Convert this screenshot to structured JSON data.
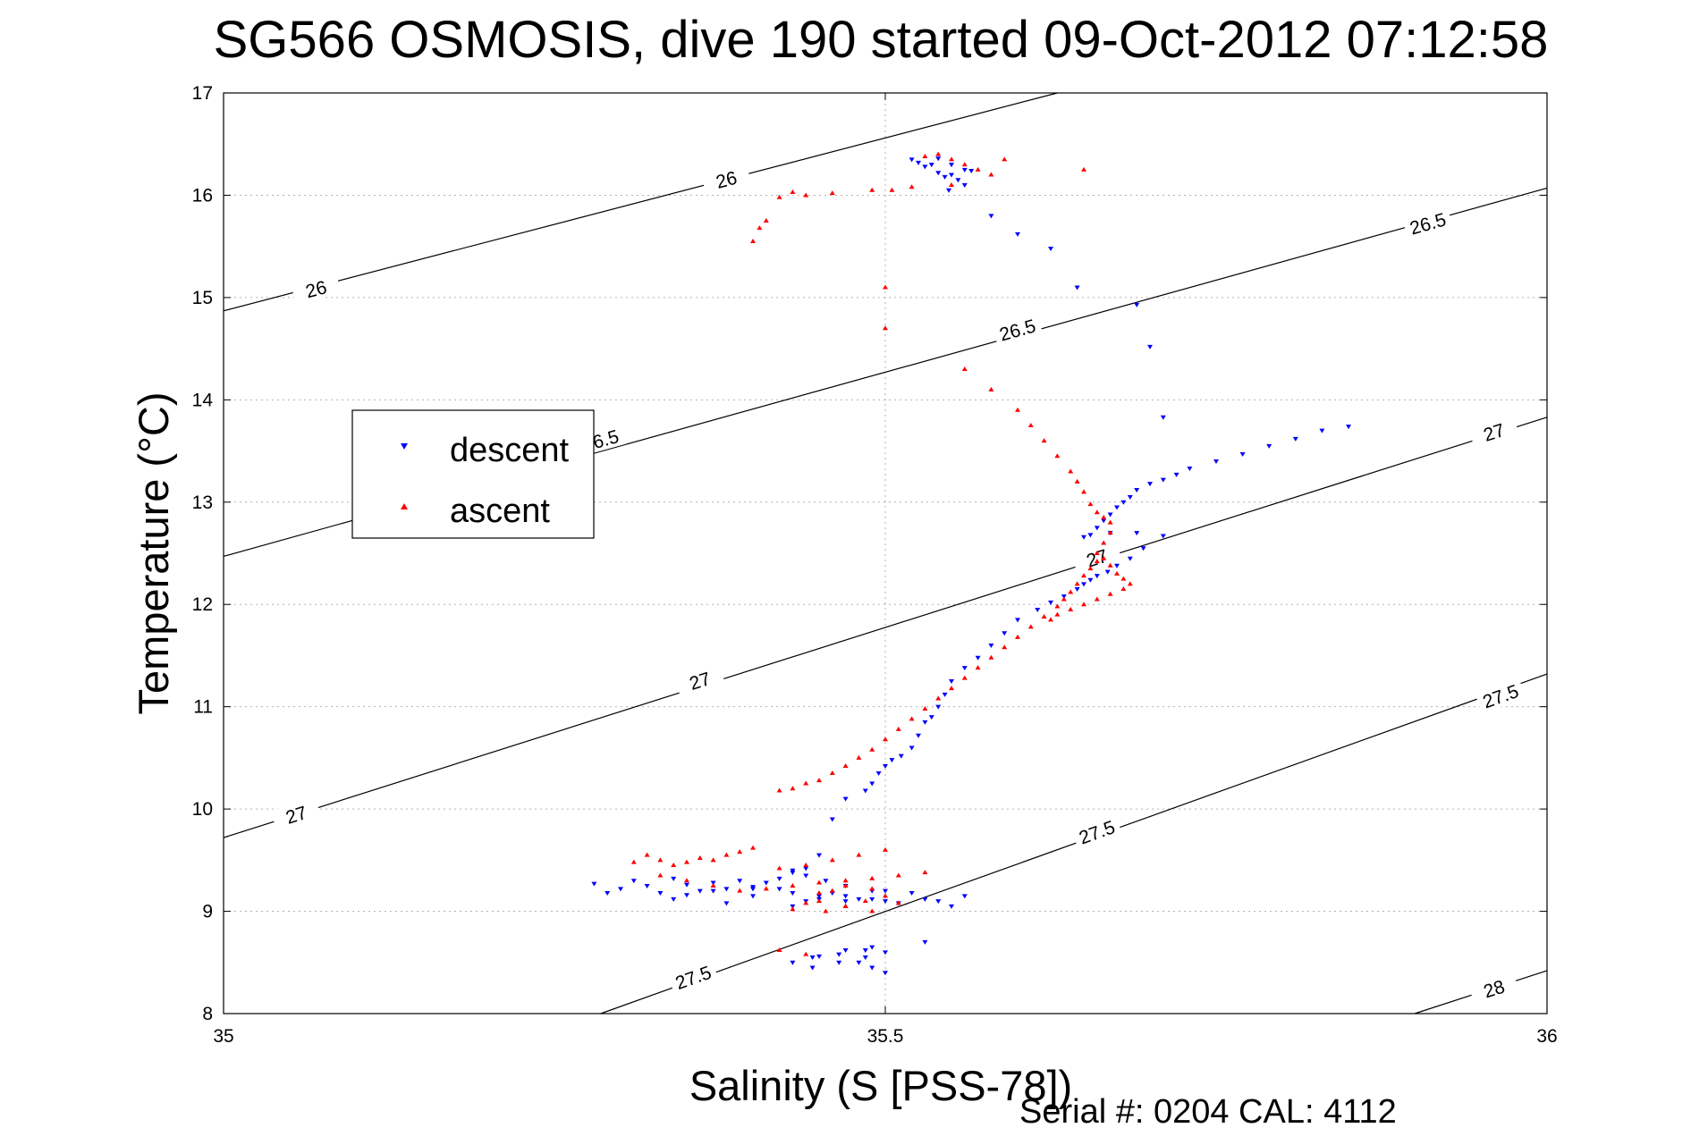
{
  "chart_data": {
    "type": "scatter",
    "title": "SG566 OSMOSIS, dive 190 started 09-Oct-2012 07:12:58",
    "xlabel": "Salinity (S [PSS-78])",
    "ylabel": "Temperature (°C)",
    "footer": "Serial #: 0204  CAL: 4112",
    "xlim": [
      35,
      36
    ],
    "ylim": [
      8,
      17
    ],
    "xticks": [
      35,
      35.5,
      36
    ],
    "xtick_labels": [
      "35",
      "35.5",
      "36"
    ],
    "yticks": [
      8,
      9,
      10,
      11,
      12,
      13,
      14,
      15,
      16,
      17
    ],
    "ytick_labels": [
      "8",
      "9",
      "10",
      "11",
      "12",
      "13",
      "14",
      "15",
      "16",
      "17"
    ],
    "grid": true,
    "legend_position": "upper-left",
    "density_contours": [
      {
        "label": "26",
        "segment": [
          [
            35,
            14.87
          ],
          [
            35.63,
            17
          ]
        ],
        "label_points": [
          [
            35.07,
            15.08
          ],
          [
            35.38,
            16.15
          ]
        ]
      },
      {
        "label": "26.5",
        "segment": [
          [
            35,
            12.47
          ],
          [
            36,
            16.07
          ]
        ],
        "label_points": [
          [
            35.285,
            13.6
          ],
          [
            35.6,
            14.68
          ],
          [
            35.91,
            15.72
          ]
        ]
      },
      {
        "label": "27",
        "segment": [
          [
            35,
            9.72
          ],
          [
            36,
            13.83
          ]
        ],
        "label_points": [
          [
            35.055,
            9.94
          ],
          [
            35.36,
            11.25
          ],
          [
            35.66,
            12.45
          ],
          [
            35.96,
            13.68
          ]
        ]
      },
      {
        "label": "27.5",
        "segment": [
          [
            35.285,
            8
          ],
          [
            36,
            11.32
          ]
        ],
        "label_points": [
          [
            35.355,
            8.35
          ],
          [
            35.66,
            9.77
          ],
          [
            35.965,
            11.1
          ]
        ]
      },
      {
        "label": "28",
        "segment": [
          [
            35.9,
            8
          ],
          [
            36,
            8.42
          ]
        ],
        "label_points": [
          [
            35.96,
            8.24
          ]
        ]
      }
    ],
    "series": [
      {
        "name": "descent",
        "color": "#0000ff",
        "marker": "triangle-down",
        "x": [
          35.52,
          35.525,
          35.53,
          35.535,
          35.54,
          35.545,
          35.55,
          35.555,
          35.56,
          35.548,
          35.565,
          35.54,
          35.55,
          35.56,
          35.58,
          35.6,
          35.625,
          35.645,
          35.69,
          35.7,
          35.71,
          35.85,
          35.83,
          35.81,
          35.79,
          35.77,
          35.75,
          35.73,
          35.72,
          35.71,
          35.7,
          35.69,
          35.685,
          35.68,
          35.675,
          35.67,
          35.665,
          35.66,
          35.655,
          35.65,
          35.67,
          35.69,
          35.71,
          35.695,
          35.685,
          35.675,
          35.668,
          35.66,
          35.655,
          35.65,
          35.645,
          35.635,
          35.625,
          35.615,
          35.6,
          35.59,
          35.58,
          35.57,
          35.56,
          35.55,
          35.545,
          35.54,
          35.535,
          35.53,
          35.525,
          35.52,
          35.512,
          35.505,
          35.5,
          35.495,
          35.49,
          35.485,
          35.47,
          35.46,
          35.45,
          35.44,
          35.43,
          35.42,
          35.41,
          35.4,
          35.39,
          35.38,
          35.37,
          35.36,
          35.35,
          35.34,
          35.33,
          35.32,
          35.31,
          35.3,
          35.29,
          35.28,
          35.34,
          35.35,
          35.37,
          35.38,
          35.4,
          35.42,
          35.44,
          35.46,
          35.48,
          35.5,
          35.52,
          35.54,
          35.56,
          35.55,
          35.53,
          35.51,
          35.49,
          35.47,
          35.45,
          35.43,
          35.4,
          35.43,
          35.45,
          35.47,
          35.49,
          35.5,
          35.485,
          35.465,
          35.445,
          35.43,
          35.445,
          35.465,
          35.485,
          35.5,
          35.49,
          35.47,
          35.45,
          35.53,
          35.43,
          35.44,
          35.455,
          35.47,
          35.5,
          35.49,
          35.48
        ],
        "y": [
          16.35,
          16.32,
          16.28,
          16.3,
          16.22,
          16.18,
          16.2,
          16.15,
          16.1,
          16.05,
          16.24,
          16.36,
          16.3,
          16.25,
          15.8,
          15.62,
          15.48,
          15.1,
          14.93,
          14.52,
          13.83,
          13.74,
          13.7,
          13.62,
          13.55,
          13.47,
          13.4,
          13.33,
          13.27,
          13.22,
          13.18,
          13.12,
          13.05,
          13.0,
          12.95,
          12.88,
          12.82,
          12.75,
          12.68,
          12.66,
          12.7,
          12.7,
          12.67,
          12.55,
          12.45,
          12.38,
          12.32,
          12.28,
          12.24,
          12.2,
          12.15,
          12.08,
          12.02,
          11.95,
          11.85,
          11.72,
          11.6,
          11.48,
          11.38,
          11.25,
          11.12,
          11.0,
          10.9,
          10.85,
          10.72,
          10.6,
          10.52,
          10.48,
          10.42,
          10.35,
          10.25,
          10.18,
          10.1,
          9.9,
          9.55,
          9.42,
          9.38,
          9.32,
          9.28,
          9.24,
          9.3,
          9.22,
          9.28,
          9.2,
          9.26,
          9.32,
          9.18,
          9.25,
          9.3,
          9.22,
          9.18,
          9.27,
          9.12,
          9.16,
          9.2,
          9.08,
          9.15,
          9.22,
          9.1,
          9.18,
          9.12,
          9.2,
          9.18,
          9.1,
          9.15,
          9.05,
          9.12,
          9.08,
          9.2,
          9.1,
          9.15,
          9.18,
          9.22,
          9.05,
          9.12,
          9.15,
          9.12,
          9.1,
          8.62,
          8.58,
          8.55,
          8.5,
          8.45,
          8.5,
          8.55,
          8.6,
          8.65,
          8.62,
          8.56,
          8.7,
          9.4,
          9.35,
          9.3,
          9.25,
          8.4,
          8.45,
          8.5
        ]
      },
      {
        "name": "ascent",
        "color": "#ff0000",
        "marker": "triangle-up",
        "x": [
          35.505,
          35.53,
          35.54,
          35.55,
          35.56,
          35.57,
          35.58,
          35.59,
          35.55,
          35.52,
          35.49,
          35.46,
          35.44,
          35.43,
          35.42,
          35.41,
          35.405,
          35.4,
          35.65,
          35.5,
          35.5,
          35.56,
          35.58,
          35.6,
          35.61,
          35.62,
          35.63,
          35.64,
          35.645,
          35.65,
          35.655,
          35.66,
          35.665,
          35.67,
          35.67,
          35.665,
          35.66,
          35.665,
          35.67,
          35.675,
          35.68,
          35.685,
          35.68,
          35.67,
          35.66,
          35.65,
          35.64,
          35.63,
          35.625,
          35.66,
          35.655,
          35.65,
          35.645,
          35.64,
          35.635,
          35.63,
          35.62,
          35.61,
          35.6,
          35.59,
          35.58,
          35.57,
          35.56,
          35.55,
          35.54,
          35.53,
          35.52,
          35.51,
          35.5,
          35.49,
          35.48,
          35.47,
          35.46,
          35.45,
          35.44,
          35.43,
          35.42,
          35.4,
          35.39,
          35.38,
          35.37,
          35.36,
          35.35,
          35.34,
          35.33,
          35.32,
          35.31,
          35.33,
          35.35,
          35.37,
          35.39,
          35.41,
          35.43,
          35.45,
          35.47,
          35.49,
          35.51,
          35.53,
          35.5,
          35.48,
          35.46,
          35.44,
          35.42,
          35.45,
          35.47,
          35.49,
          35.51,
          35.43,
          35.44,
          35.455,
          35.47,
          35.485,
          35.5,
          35.49,
          35.47,
          35.46,
          35.45,
          35.42,
          35.44
        ],
        "y": [
          16.05,
          16.38,
          16.4,
          16.35,
          16.3,
          16.25,
          16.2,
          16.35,
          16.1,
          16.08,
          16.05,
          16.02,
          16.0,
          16.03,
          15.98,
          15.75,
          15.68,
          15.55,
          16.25,
          15.1,
          14.7,
          14.3,
          14.1,
          13.9,
          13.75,
          13.6,
          13.45,
          13.3,
          13.2,
          13.1,
          12.98,
          12.9,
          12.85,
          12.8,
          12.7,
          12.6,
          12.5,
          12.45,
          12.38,
          12.3,
          12.25,
          12.2,
          12.15,
          12.1,
          12.05,
          12.0,
          11.95,
          11.9,
          11.85,
          12.42,
          12.35,
          12.28,
          12.2,
          12.12,
          12.05,
          11.98,
          11.88,
          11.78,
          11.68,
          11.58,
          11.48,
          11.38,
          11.28,
          11.18,
          11.08,
          10.98,
          10.88,
          10.78,
          10.68,
          10.58,
          10.5,
          10.42,
          10.35,
          10.28,
          10.25,
          10.2,
          10.18,
          9.62,
          9.58,
          9.55,
          9.5,
          9.52,
          9.48,
          9.45,
          9.5,
          9.55,
          9.48,
          9.35,
          9.3,
          9.25,
          9.2,
          9.22,
          9.25,
          9.28,
          9.3,
          9.32,
          9.35,
          9.38,
          9.6,
          9.55,
          9.5,
          9.45,
          9.42,
          9.1,
          9.05,
          9.0,
          9.08,
          9.02,
          9.08,
          9.0,
          9.05,
          9.1,
          9.15,
          9.22,
          9.25,
          9.2,
          9.18,
          8.62,
          8.58
        ]
      }
    ]
  }
}
